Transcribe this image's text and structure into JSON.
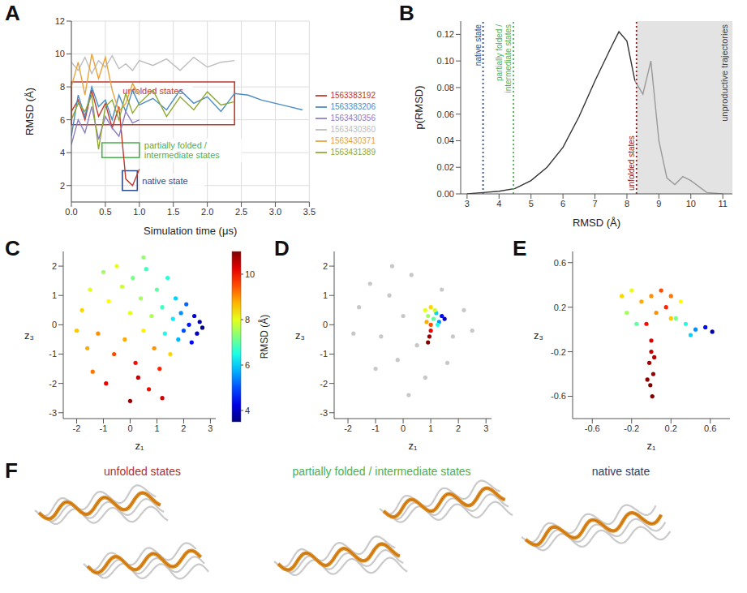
{
  "chart_data": [
    {
      "panel": "A",
      "type": "line",
      "xlabel": "Simulation time (μs)",
      "ylabel": "RMSD (Å)",
      "xlim": [
        0,
        3.5
      ],
      "ylim": [
        1,
        12
      ],
      "xticks": [
        {
          "value": 0,
          "label": "0.0"
        },
        {
          "value": 0.5,
          "label": "0.5"
        },
        {
          "value": 1,
          "label": "1.0"
        },
        {
          "value": 1.5,
          "label": "1.5"
        },
        {
          "value": 2,
          "label": "2.0"
        },
        {
          "value": 2.5,
          "label": "2.5"
        },
        {
          "value": 3,
          "label": "3.0"
        },
        {
          "value": 3.5,
          "label": "3.5"
        }
      ],
      "yticks": [
        2,
        4,
        6,
        8,
        10,
        12
      ],
      "grid": true,
      "legend": "right",
      "x": [
        0,
        0.1,
        0.2,
        0.3,
        0.4,
        0.5,
        0.6,
        0.7,
        0.8,
        0.9,
        1.0,
        1.2,
        1.4,
        1.6,
        1.8,
        2.0,
        2.2,
        2.4,
        2.6,
        2.8,
        3.0,
        3.2,
        3.4
      ],
      "series": [
        {
          "name": "1563383192",
          "color": "#c0392b",
          "values": [
            6.5,
            7.2,
            6.0,
            7.8,
            6.2,
            7.0,
            5.5,
            6.8,
            2.4,
            2.0,
            3.0,
            null,
            null,
            null,
            null,
            null,
            null,
            null,
            null,
            null,
            null,
            null,
            null
          ]
        },
        {
          "name": "1563383206",
          "color": "#4a8bc4",
          "values": [
            5.0,
            7.5,
            6.2,
            8.0,
            6.8,
            7.2,
            6.0,
            7.5,
            6.5,
            7.8,
            6.9,
            7.3,
            6.6,
            7.8,
            7.0,
            7.4,
            6.5,
            7.6,
            7.5,
            7.2,
            7.0,
            6.8,
            6.6
          ]
        },
        {
          "name": "1563430356",
          "color": "#8e7cc3",
          "values": [
            4.5,
            6.0,
            5.2,
            6.8,
            4.8,
            6.2,
            5.5,
            5.0,
            6.5,
            5.8,
            6.0,
            null,
            null,
            null,
            null,
            null,
            null,
            null,
            null,
            null,
            null,
            null,
            null
          ]
        },
        {
          "name": "1563430360",
          "color": "#bdbdbd",
          "values": [
            9.5,
            9.0,
            9.8,
            8.8,
            9.6,
            9.2,
            9.9,
            9.1,
            9.4,
            9.0,
            9.6,
            9.3,
            9.7,
            9.0,
            9.8,
            9.2,
            9.5,
            9.6,
            null,
            null,
            null,
            null,
            null
          ]
        },
        {
          "name": "1563430371",
          "color": "#e8a33d",
          "values": [
            8.0,
            9.5,
            7.5,
            10.0,
            8.5,
            9.8,
            7.8,
            6.5,
            7.0,
            8.2,
            7.5,
            null,
            null,
            null,
            null,
            null,
            null,
            null,
            null,
            null,
            null,
            null,
            null
          ]
        },
        {
          "name": "1563431389",
          "color": "#8fa832",
          "values": [
            6.0,
            7.0,
            6.5,
            7.5,
            4.2,
            6.8,
            7.2,
            6.0,
            7.6,
            6.4,
            7.0,
            7.8,
            6.2,
            7.4,
            6.6,
            7.7,
            6.9,
            7.1,
            null,
            null,
            null,
            null,
            null
          ]
        }
      ],
      "annotations": [
        {
          "text": "unfolded states",
          "x": [
            0,
            2.4
          ],
          "y": [
            5.7,
            8.3
          ],
          "color": "#c0392b"
        },
        {
          "text": "partially folded / intermediate states",
          "x": [
            0.45,
            1.0
          ],
          "y": [
            3.7,
            4.6
          ],
          "color": "#4caf50"
        },
        {
          "text": "native state",
          "x": [
            0.75,
            0.97
          ],
          "y": [
            1.7,
            2.9
          ],
          "color": "#2c4a8c"
        }
      ]
    },
    {
      "panel": "B",
      "type": "line",
      "xlabel": "RMSD (Å)",
      "ylabel": "p(RMSD)",
      "xlim": [
        2.8,
        11.3
      ],
      "ylim": [
        0,
        0.13
      ],
      "xticks": [
        3,
        4,
        5,
        6,
        7,
        8,
        9,
        10,
        11
      ],
      "yticks": [
        {
          "value": 0,
          "label": "0.00"
        },
        {
          "value": 0.02,
          "label": "0.02"
        },
        {
          "value": 0.04,
          "label": "0.04"
        },
        {
          "value": 0.06,
          "label": "0.06"
        },
        {
          "value": 0.08,
          "label": "0.08"
        },
        {
          "value": 0.1,
          "label": "0.10"
        },
        {
          "value": 0.12,
          "label": "0.12"
        }
      ],
      "grid": false,
      "x": [
        3,
        3.5,
        4,
        4.5,
        5,
        5.5,
        6,
        6.5,
        7,
        7.5,
        7.75,
        8,
        8.25,
        8.5,
        8.75,
        9,
        9.25,
        9.5,
        9.75,
        10,
        10.5,
        11
      ],
      "series": [
        {
          "color": "#333333",
          "values": [
            0,
            0.001,
            0.002,
            0.004,
            0.01,
            0.02,
            0.035,
            0.058,
            0.085,
            0.11,
            0.122,
            0.115,
            0.085,
            null,
            null,
            null,
            null,
            null,
            null,
            null,
            null,
            null
          ]
        },
        {
          "color": "#999999",
          "values": [
            null,
            null,
            null,
            null,
            null,
            null,
            null,
            null,
            null,
            null,
            null,
            null,
            0.085,
            0.075,
            0.1,
            0.04,
            0.012,
            0.007,
            0.013,
            0.01,
            0.001,
            0
          ]
        }
      ],
      "annotations": [
        {
          "text": "native state",
          "x": 3.5,
          "color": "#2c4a8c"
        },
        {
          "text": "partially folded / intermediate states",
          "x": 4.45,
          "color": "#4caf50"
        },
        {
          "text": "unfolded states",
          "x": 8.3,
          "color": "#8b1a1a"
        },
        {
          "text": "unproductive trajectories",
          "x": [
            8.3,
            11.3
          ],
          "color": "#e3e3e3"
        }
      ]
    },
    {
      "panel": "C",
      "type": "scatter",
      "xlabel": "z₁",
      "ylabel": "z₃",
      "xlim": [
        -2.5,
        3.2
      ],
      "ylim": [
        -3.2,
        2.5
      ],
      "xticks": [
        -2,
        -1,
        0,
        1,
        2,
        3
      ],
      "yticks": [
        -3,
        -2,
        -1,
        0,
        1,
        2
      ],
      "colorbar": {
        "label": "RMSD (Å)",
        "range": [
          3.5,
          11
        ],
        "ticks": [
          4,
          6,
          8,
          10
        ]
      },
      "series": [
        {
          "x": [
            -1.8,
            -1.5,
            -1.2,
            -1.0,
            -0.8,
            -0.6,
            -0.5,
            -0.3,
            -0.2,
            0,
            0.1,
            0.2,
            0.3,
            0.4,
            0.5,
            0.6,
            0.7,
            0.8,
            0.9,
            1.0,
            1.1,
            1.2,
            1.3,
            1.4,
            1.5,
            1.6,
            1.7,
            1.8,
            1.9,
            2.0,
            2.1,
            2.2,
            2.3,
            2.4,
            2.5,
            2.6,
            2.7,
            -1.4,
            -0.9,
            0.0,
            -1.6,
            0.5,
            1.2,
            -2.0
          ],
          "values": [
            0.5,
            1.2,
            -0.3,
            1.8,
            0.8,
            -1.0,
            2.0,
            1.3,
            -0.5,
            0.4,
            1.6,
            -1.3,
            -1.8,
            0.9,
            -0.2,
            1.9,
            -2.2,
            0.3,
            -0.8,
            1.2,
            -1.5,
            0.6,
            -0.3,
            1.6,
            -1.0,
            0.2,
            0.9,
            -0.5,
            0.4,
            -0.2,
            0.7,
            0.0,
            -0.6,
            0.3,
            -0.3,
            0.1,
            -0.1,
            -1.6,
            -2.0,
            -2.6,
            -0.8,
            2.3,
            -2.5,
            -0.2
          ],
          "color_values": [
            8.5,
            8,
            9,
            7.5,
            8.2,
            9.5,
            8,
            7.8,
            8.8,
            8,
            7.2,
            10,
            10.5,
            7.5,
            8.3,
            6.8,
            10,
            7.6,
            9,
            7,
            9.8,
            6.8,
            6.5,
            6.6,
            8.5,
            6.2,
            6.0,
            5.8,
            5.5,
            5.0,
            5.2,
            4.6,
            4.5,
            4.2,
            4.0,
            3.8,
            3.6,
            9.2,
            10.2,
            10.8,
            8.8,
            7.4,
            10.4,
            8.6
          ]
        }
      ]
    },
    {
      "panel": "D",
      "type": "scatter",
      "xlabel": "z₁",
      "ylabel": "z₃",
      "xlim": [
        -2.5,
        3.2
      ],
      "ylim": [
        -3.2,
        2.5
      ],
      "xticks": [
        -2,
        -1,
        0,
        1,
        2,
        3
      ],
      "yticks": [
        -3,
        -2,
        -1,
        0,
        1,
        2
      ],
      "series": [
        {
          "color": "#c8c8c8",
          "x": [
            -1.6,
            -1.2,
            -0.8,
            -0.5,
            -0.2,
            0.0,
            0.3,
            0.5,
            0.8,
            1.4,
            1.8,
            2.2,
            -1.0,
            0.2,
            -0.4,
            1.6,
            2.5,
            -1.8
          ],
          "values": [
            0.6,
            1.4,
            -0.4,
            1.0,
            -1.2,
            0.3,
            1.7,
            -0.7,
            -1.8,
            1.2,
            -0.4,
            0.5,
            -1.5,
            -2.4,
            2.0,
            -1.3,
            -0.2,
            -0.3
          ]
        },
        {
          "x": [
            0.8,
            0.9,
            1.0,
            1.1,
            1.2,
            1.3,
            1.4,
            1.5,
            1.0,
            1.0,
            0.95,
            0.9,
            0.85,
            1.15,
            1.25
          ],
          "values": [
            0.5,
            0.3,
            0.6,
            0.2,
            0.4,
            0.1,
            0.3,
            0.2,
            0.0,
            -0.2,
            -0.4,
            -0.6,
            0.1,
            0.5,
            0.0
          ],
          "color_values": [
            8,
            7.5,
            8.5,
            7,
            6,
            5.5,
            4.5,
            4,
            9.5,
            10.2,
            10.8,
            11,
            8.8,
            7.8,
            6.5
          ]
        }
      ]
    },
    {
      "panel": "E",
      "type": "scatter",
      "xlabel": "z₁",
      "ylabel": "z₃",
      "xlim": [
        -0.8,
        0.8
      ],
      "ylim": [
        -0.8,
        0.7
      ],
      "xticks": [
        -0.6,
        -0.2,
        0.2,
        0.6
      ],
      "yticks": [
        -0.6,
        -0.2,
        0.2,
        0.6
      ],
      "series": [
        {
          "x": [
            -0.3,
            -0.2,
            -0.1,
            0.0,
            0.1,
            0.2,
            0.3,
            -0.25,
            0.05,
            0.15,
            0.25,
            0.35,
            0.45,
            0.55,
            0.62,
            0.4,
            -0.05,
            0.0,
            0.0,
            -0.02,
            0.02,
            -0.01,
            0.01,
            0.03,
            -0.04,
            -0.15,
            0.2
          ],
          "values": [
            0.3,
            0.35,
            0.25,
            0.3,
            0.35,
            0.3,
            0.25,
            0.15,
            0.15,
            0.2,
            0.1,
            0.05,
            0.0,
            0.02,
            -0.02,
            -0.05,
            0.05,
            -0.1,
            -0.2,
            -0.3,
            -0.4,
            -0.5,
            -0.6,
            -0.25,
            -0.45,
            0.05,
            0.1
          ],
          "color_values": [
            8.5,
            8,
            8.8,
            9,
            9.5,
            9.2,
            8.2,
            7.5,
            9,
            9.8,
            7.2,
            6.5,
            5.5,
            4.5,
            3.8,
            6,
            10,
            10.3,
            10.5,
            10.7,
            10.8,
            11,
            11,
            10.6,
            10.9,
            7,
            8.6
          ]
        }
      ]
    }
  ],
  "structures": {
    "panel": "F",
    "groups": [
      {
        "title": "unfolded states",
        "color": "#b03030"
      },
      {
        "title": "partially folded / intermediate states",
        "color": "#4caf50"
      },
      {
        "title": "native state",
        "color": "#2c3e6b"
      }
    ]
  }
}
